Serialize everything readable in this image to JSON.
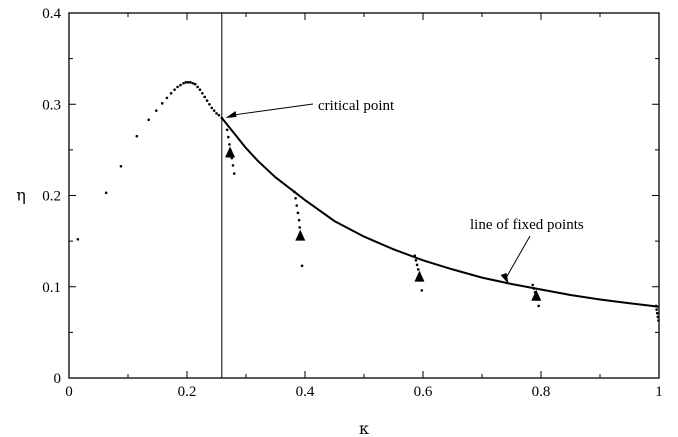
{
  "chart_data": {
    "type": "scatter",
    "xlabel": "κ",
    "ylabel": "η",
    "xlim": [
      0,
      1
    ],
    "ylim": [
      0,
      0.4
    ],
    "x_ticks": [
      0,
      0.2,
      0.4,
      0.6,
      0.8,
      1.0
    ],
    "x_tick_labels": [
      "0",
      "0.2",
      "0.4",
      "0.6",
      "0.8",
      "1"
    ],
    "y_ticks": [
      0,
      0.1,
      0.2,
      0.3,
      0.4
    ],
    "y_tick_labels": [
      "0",
      "0.1",
      "0.2",
      "0.3",
      "0.4"
    ],
    "grid": false,
    "critical_kappa": 0.259,
    "series": [
      {
        "kind": "dotted-curve",
        "points": [
          [
            0.015,
            0.152
          ],
          [
            0.063,
            0.203
          ],
          [
            0.088,
            0.232
          ],
          [
            0.115,
            0.265
          ],
          [
            0.135,
            0.283
          ],
          [
            0.148,
            0.293
          ],
          [
            0.158,
            0.301
          ],
          [
            0.166,
            0.307
          ],
          [
            0.173,
            0.312
          ],
          [
            0.179,
            0.316
          ],
          [
            0.184,
            0.319
          ],
          [
            0.189,
            0.321
          ],
          [
            0.194,
            0.323
          ],
          [
            0.198,
            0.324
          ],
          [
            0.202,
            0.324
          ],
          [
            0.206,
            0.324
          ],
          [
            0.21,
            0.323
          ],
          [
            0.214,
            0.322
          ],
          [
            0.218,
            0.319
          ],
          [
            0.222,
            0.316
          ],
          [
            0.226,
            0.312
          ],
          [
            0.23,
            0.308
          ],
          [
            0.234,
            0.304
          ],
          [
            0.238,
            0.3
          ],
          [
            0.242,
            0.296
          ],
          [
            0.246,
            0.293
          ],
          [
            0.25,
            0.29
          ],
          [
            0.254,
            0.288
          ],
          [
            0.259,
            0.285
          ]
        ]
      },
      {
        "kind": "line",
        "points": [
          [
            0.259,
            0.285
          ],
          [
            0.28,
            0.268
          ],
          [
            0.3,
            0.252
          ],
          [
            0.32,
            0.238
          ],
          [
            0.35,
            0.22
          ],
          [
            0.38,
            0.205
          ],
          [
            0.4,
            0.195
          ],
          [
            0.45,
            0.172
          ],
          [
            0.5,
            0.155
          ],
          [
            0.55,
            0.141
          ],
          [
            0.6,
            0.129
          ],
          [
            0.65,
            0.119
          ],
          [
            0.7,
            0.11
          ],
          [
            0.75,
            0.103
          ],
          [
            0.8,
            0.097
          ],
          [
            0.85,
            0.091
          ],
          [
            0.9,
            0.086
          ],
          [
            0.95,
            0.082
          ],
          [
            1.0,
            0.078
          ]
        ]
      },
      {
        "kind": "descent-dots",
        "points": [
          [
            0.268,
            0.272
          ],
          [
            0.27,
            0.264
          ],
          [
            0.272,
            0.256
          ],
          [
            0.274,
            0.249
          ],
          [
            0.276,
            0.241
          ],
          [
            0.278,
            0.233
          ],
          [
            0.28,
            0.224
          ],
          [
            0.382,
            0.204
          ],
          [
            0.384,
            0.197
          ],
          [
            0.386,
            0.189
          ],
          [
            0.388,
            0.181
          ],
          [
            0.39,
            0.173
          ],
          [
            0.391,
            0.165
          ],
          [
            0.392,
            0.158
          ],
          [
            0.395,
            0.123
          ],
          [
            0.586,
            0.134
          ],
          [
            0.588,
            0.129
          ],
          [
            0.59,
            0.124
          ],
          [
            0.592,
            0.119
          ],
          [
            0.594,
            0.113
          ],
          [
            0.596,
            0.107
          ],
          [
            0.598,
            0.096
          ],
          [
            0.786,
            0.102
          ],
          [
            0.788,
            0.098
          ],
          [
            0.79,
            0.094
          ],
          [
            0.792,
            0.09
          ],
          [
            0.794,
            0.086
          ],
          [
            0.796,
            0.079
          ],
          [
            0.995,
            0.079
          ],
          [
            0.996,
            0.075
          ],
          [
            0.997,
            0.071
          ],
          [
            0.998,
            0.067
          ],
          [
            0.999,
            0.063
          ]
        ]
      },
      {
        "kind": "arrowheads",
        "points": [
          [
            0.273,
            0.246
          ],
          [
            0.392,
            0.155
          ],
          [
            0.594,
            0.11
          ],
          [
            0.792,
            0.089
          ]
        ]
      }
    ],
    "annotations": [
      {
        "text": "critical point",
        "points_to": [
          0.262,
          0.285
        ]
      },
      {
        "text": "line of fixed points",
        "points_to": [
          0.745,
          0.103
        ]
      }
    ]
  }
}
